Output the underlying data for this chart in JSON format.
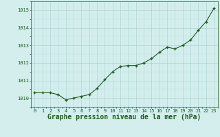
{
  "x": [
    0,
    1,
    2,
    3,
    4,
    5,
    6,
    7,
    8,
    9,
    10,
    11,
    12,
    13,
    14,
    15,
    16,
    17,
    18,
    19,
    20,
    21,
    22,
    23
  ],
  "y": [
    1010.3,
    1010.3,
    1010.3,
    1010.2,
    1009.9,
    1010.0,
    1010.1,
    1010.2,
    1010.55,
    1011.05,
    1011.5,
    1011.8,
    1011.85,
    1011.85,
    1012.0,
    1012.25,
    1012.6,
    1012.9,
    1012.8,
    1013.0,
    1013.3,
    1013.85,
    1014.35,
    1015.1
  ],
  "line_color": "#1a5c1a",
  "marker_color": "#1a5c1a",
  "bg_color": "#d4eeee",
  "grid_color_minor": "#c0e0e0",
  "grid_color_major": "#b0d4d4",
  "title": "Graphe pression niveau de la mer (hPa)",
  "title_color": "#1a5c1a",
  "ylim": [
    1009.5,
    1015.5
  ],
  "yticks": [
    1010,
    1011,
    1012,
    1013,
    1014,
    1015
  ],
  "xticks": [
    0,
    1,
    2,
    3,
    4,
    5,
    6,
    7,
    8,
    9,
    10,
    11,
    12,
    13,
    14,
    15,
    16,
    17,
    18,
    19,
    20,
    21,
    22,
    23
  ],
  "tick_color": "#1a5c1a",
  "tick_fontsize": 5.0,
  "title_fontsize": 7.0,
  "marker_size": 2.5,
  "line_width": 0.8
}
